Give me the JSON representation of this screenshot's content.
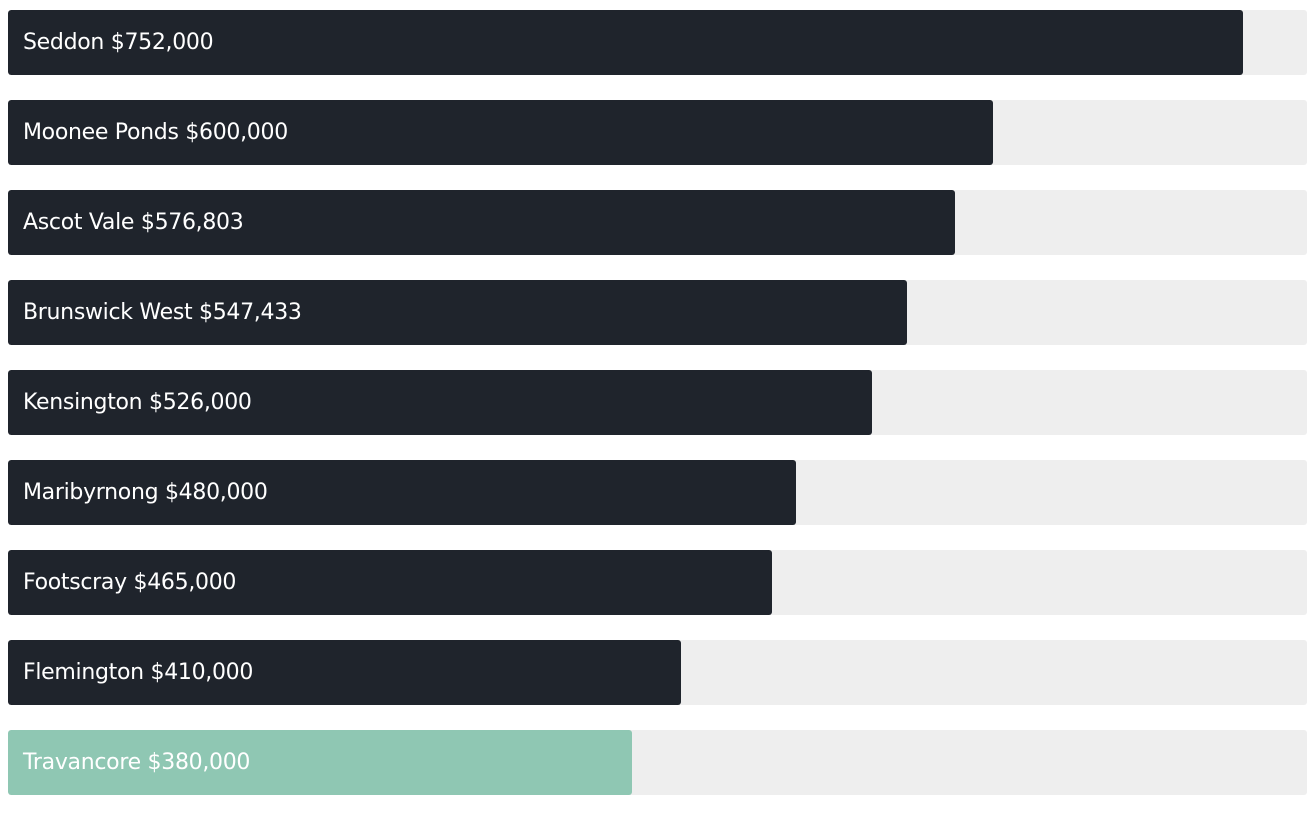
{
  "chart_data": {
    "type": "bar",
    "orientation": "horizontal",
    "title": "",
    "xlabel": "",
    "ylabel": "",
    "xlim": [
      0,
      791000
    ],
    "grid": false,
    "legend": "none",
    "categories": [
      "Seddon",
      "Moonee Ponds",
      "Ascot Vale",
      "Brunswick West",
      "Kensington",
      "Maribyrnong",
      "Footscray",
      "Flemington",
      "Travancore"
    ],
    "values": [
      752000,
      600000,
      576803,
      547433,
      526000,
      480000,
      465000,
      410000,
      380000
    ],
    "value_labels": [
      "$752,000",
      "$600,000",
      "$576,803",
      "$547,433",
      "$526,000",
      "$480,000",
      "$465,000",
      "$410,000",
      "$380,000"
    ],
    "highlighted_category": "Travancore",
    "colors": {
      "bar": "#1f242c",
      "highlight": "#8fc7b3",
      "track": "#eeeeee",
      "label_on_bar": "#ffffff",
      "label_on_highlight": "#ffffff"
    }
  }
}
